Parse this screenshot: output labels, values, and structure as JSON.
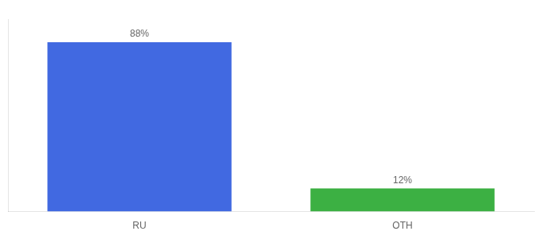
{
  "chart_data": {
    "type": "bar",
    "categories": [
      "RU",
      "OTH"
    ],
    "values": [
      88,
      12
    ],
    "value_labels": [
      "88%",
      "12%"
    ],
    "colors": [
      "#4169e1",
      "#3cb043"
    ],
    "ylim": [
      0,
      100
    ],
    "grid": false,
    "data_labels": true,
    "tick_labels": "x"
  }
}
